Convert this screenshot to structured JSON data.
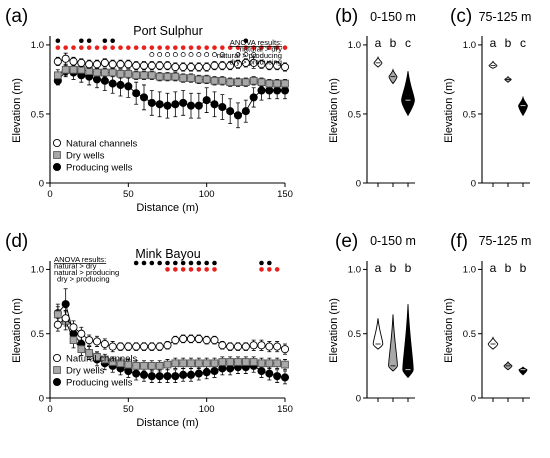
{
  "colors": {
    "natural": "#ffffff",
    "dry": "#a8a8a8",
    "producing": "#000000",
    "sig_black": "#000000",
    "sig_red": "#e8211d",
    "sig_open": "#ffffff"
  },
  "series_labels": [
    "Natural channels",
    "Dry wells",
    "Producing wells"
  ],
  "anova": {
    "title": "ANOVA results:",
    "lines": [
      "natural > dry",
      "natural > producing",
      "dry > producing"
    ]
  },
  "chart_data": [
    {
      "id": "a",
      "panel_label": "(a)",
      "type": "line",
      "title": "Port Sulphur",
      "xlabel": "Distance (m)",
      "ylabel": "Elevation (m)",
      "xlim": [
        0,
        150
      ],
      "ylim": [
        0,
        1.05
      ],
      "xticks": [
        0,
        50,
        100,
        150
      ],
      "yticks": [
        0,
        0.5,
        1.0
      ],
      "yticklabels": [
        "0",
        "0.5",
        "1.0"
      ],
      "x": [
        5,
        10,
        15,
        20,
        25,
        30,
        35,
        40,
        45,
        50,
        55,
        60,
        65,
        70,
        75,
        80,
        85,
        90,
        95,
        100,
        105,
        110,
        115,
        120,
        125,
        130,
        135,
        140,
        145,
        150
      ],
      "series": [
        {
          "key": "natural",
          "values": [
            0.88,
            0.9,
            0.88,
            0.87,
            0.86,
            0.86,
            0.87,
            0.86,
            0.86,
            0.86,
            0.85,
            0.85,
            0.85,
            0.85,
            0.85,
            0.84,
            0.84,
            0.84,
            0.84,
            0.84,
            0.85,
            0.85,
            0.85,
            0.86,
            0.87,
            0.87,
            0.86,
            0.85,
            0.85,
            0.84
          ],
          "err": [
            0.03,
            0.04,
            0.03,
            0.03,
            0.03,
            0.03,
            0.03,
            0.03,
            0.03,
            0.03,
            0.03,
            0.03,
            0.03,
            0.03,
            0.03,
            0.03,
            0.03,
            0.03,
            0.03,
            0.03,
            0.03,
            0.03,
            0.03,
            0.03,
            0.03,
            0.04,
            0.03,
            0.03,
            0.03,
            0.03
          ]
        },
        {
          "key": "dry",
          "values": [
            0.78,
            0.82,
            0.82,
            0.82,
            0.81,
            0.8,
            0.8,
            0.8,
            0.79,
            0.79,
            0.78,
            0.78,
            0.78,
            0.77,
            0.77,
            0.77,
            0.76,
            0.76,
            0.75,
            0.75,
            0.74,
            0.74,
            0.73,
            0.73,
            0.73,
            0.74,
            0.73,
            0.72,
            0.72,
            0.72
          ],
          "err": [
            0.04,
            0.04,
            0.03,
            0.03,
            0.03,
            0.03,
            0.03,
            0.03,
            0.03,
            0.03,
            0.03,
            0.03,
            0.03,
            0.03,
            0.03,
            0.03,
            0.03,
            0.03,
            0.03,
            0.03,
            0.03,
            0.03,
            0.03,
            0.03,
            0.03,
            0.03,
            0.03,
            0.03,
            0.03,
            0.03
          ]
        },
        {
          "key": "producing",
          "values": [
            0.74,
            0.81,
            0.8,
            0.78,
            0.77,
            0.75,
            0.74,
            0.72,
            0.71,
            0.7,
            0.65,
            0.62,
            0.58,
            0.57,
            0.56,
            0.57,
            0.58,
            0.56,
            0.56,
            0.6,
            0.57,
            0.55,
            0.52,
            0.49,
            0.52,
            0.62,
            0.67,
            0.67,
            0.67,
            0.67
          ],
          "err": [
            0.03,
            0.04,
            0.05,
            0.05,
            0.06,
            0.06,
            0.07,
            0.07,
            0.08,
            0.08,
            0.08,
            0.09,
            0.09,
            0.09,
            0.09,
            0.09,
            0.09,
            0.09,
            0.09,
            0.09,
            0.09,
            0.09,
            0.09,
            0.09,
            0.08,
            0.07,
            0.07,
            0.06,
            0.06,
            0.06
          ]
        }
      ],
      "legend": "bottom-left",
      "sig_rows": [
        {
          "color": "sig_black",
          "y": 1.03,
          "x": [
            5,
            20,
            25,
            35,
            40,
            125
          ]
        },
        {
          "color": "sig_red",
          "y": 0.98,
          "x": [
            5,
            10,
            15,
            20,
            25,
            30,
            35,
            40,
            45,
            50,
            55,
            60,
            65,
            70,
            75,
            80,
            85,
            90,
            95,
            100,
            105,
            110,
            115,
            120,
            125,
            130,
            135,
            140,
            145,
            150
          ]
        },
        {
          "color": "sig_open",
          "y": 0.93,
          "x": [
            65,
            70,
            75,
            80,
            85,
            90,
            95,
            100,
            105,
            110,
            120,
            125,
            130
          ]
        }
      ]
    },
    {
      "id": "b",
      "panel_label": "(b)",
      "type": "violin",
      "title": "0-150 m",
      "ylabel": "Elevation (m)",
      "ylim": [
        0,
        1.05
      ],
      "yticks": [
        0,
        0.5,
        1.0
      ],
      "yticklabels": [
        "0",
        "0.5",
        "1.0"
      ],
      "groups": [
        {
          "key": "natural",
          "letter": "a",
          "center": 0.87,
          "min": 0.84,
          "max": 0.91,
          "width": 0.5
        },
        {
          "key": "dry",
          "letter": "b",
          "center": 0.77,
          "min": 0.72,
          "max": 0.82,
          "width": 0.5
        },
        {
          "key": "producing",
          "letter": "c",
          "center": 0.6,
          "min": 0.49,
          "max": 0.81,
          "width": 0.8
        }
      ]
    },
    {
      "id": "c",
      "panel_label": "(c)",
      "type": "violin",
      "title": "75-125 m",
      "ylabel": "Elevation (m)",
      "ylim": [
        0,
        1.05
      ],
      "yticks": [
        0,
        0.5,
        1.0
      ],
      "yticklabels": [
        "0",
        "0.5",
        "1.0"
      ],
      "groups": [
        {
          "key": "natural",
          "letter": "a",
          "center": 0.85,
          "min": 0.83,
          "max": 0.88,
          "width": 0.5
        },
        {
          "key": "dry",
          "letter": "b",
          "center": 0.75,
          "min": 0.73,
          "max": 0.77,
          "width": 0.4
        },
        {
          "key": "producing",
          "letter": "c",
          "center": 0.56,
          "min": 0.49,
          "max": 0.62,
          "width": 0.55
        }
      ]
    },
    {
      "id": "d",
      "panel_label": "(d)",
      "type": "line",
      "title": "Mink Bayou",
      "xlabel": "Distance (m)",
      "ylabel": "Elevation (m)",
      "xlim": [
        0,
        150
      ],
      "ylim": [
        0,
        1.05
      ],
      "xticks": [
        0,
        50,
        100,
        150
      ],
      "yticks": [
        0,
        0.5,
        1.0
      ],
      "yticklabels": [
        "0",
        "0.5",
        "1.0"
      ],
      "x": [
        5,
        10,
        15,
        20,
        25,
        30,
        35,
        40,
        45,
        50,
        55,
        60,
        65,
        70,
        75,
        80,
        85,
        90,
        95,
        100,
        105,
        110,
        115,
        120,
        125,
        130,
        135,
        140,
        145,
        150
      ],
      "series": [
        {
          "key": "natural",
          "values": [
            0.57,
            0.62,
            0.55,
            0.5,
            0.45,
            0.44,
            0.42,
            0.4,
            0.4,
            0.4,
            0.4,
            0.4,
            0.4,
            0.4,
            0.41,
            0.45,
            0.46,
            0.46,
            0.46,
            0.45,
            0.45,
            0.41,
            0.4,
            0.4,
            0.4,
            0.41,
            0.41,
            0.4,
            0.4,
            0.38
          ],
          "err": [
            0.05,
            0.06,
            0.05,
            0.05,
            0.04,
            0.04,
            0.04,
            0.04,
            0.03,
            0.03,
            0.03,
            0.03,
            0.03,
            0.03,
            0.03,
            0.03,
            0.03,
            0.03,
            0.03,
            0.03,
            0.03,
            0.03,
            0.03,
            0.03,
            0.03,
            0.04,
            0.04,
            0.04,
            0.04,
            0.04
          ]
        },
        {
          "key": "dry",
          "values": [
            0.65,
            0.6,
            0.45,
            0.38,
            0.35,
            0.32,
            0.3,
            0.28,
            0.27,
            0.26,
            0.25,
            0.25,
            0.25,
            0.25,
            0.26,
            0.27,
            0.27,
            0.27,
            0.27,
            0.27,
            0.27,
            0.28,
            0.28,
            0.28,
            0.28,
            0.28,
            0.27,
            0.27,
            0.27,
            0.26
          ],
          "err": [
            0.06,
            0.07,
            0.06,
            0.05,
            0.05,
            0.04,
            0.04,
            0.04,
            0.04,
            0.04,
            0.04,
            0.04,
            0.04,
            0.04,
            0.04,
            0.04,
            0.04,
            0.04,
            0.04,
            0.04,
            0.04,
            0.04,
            0.04,
            0.04,
            0.04,
            0.04,
            0.04,
            0.04,
            0.04,
            0.04
          ]
        },
        {
          "key": "producing",
          "values": [
            0.66,
            0.73,
            0.5,
            0.42,
            0.35,
            0.3,
            0.27,
            0.25,
            0.23,
            0.21,
            0.19,
            0.18,
            0.17,
            0.17,
            0.17,
            0.17,
            0.18,
            0.18,
            0.19,
            0.2,
            0.21,
            0.23,
            0.23,
            0.24,
            0.24,
            0.25,
            0.21,
            0.19,
            0.17,
            0.16
          ],
          "err": [
            0.07,
            0.12,
            0.07,
            0.06,
            0.05,
            0.05,
            0.05,
            0.05,
            0.05,
            0.05,
            0.05,
            0.05,
            0.05,
            0.05,
            0.05,
            0.05,
            0.05,
            0.05,
            0.05,
            0.05,
            0.05,
            0.05,
            0.05,
            0.05,
            0.05,
            0.05,
            0.05,
            0.05,
            0.05,
            0.05
          ]
        }
      ],
      "legend": "bottom-left",
      "sig_rows": [
        {
          "color": "sig_black",
          "y": 1.05,
          "x": [
            55,
            60,
            65,
            70,
            75,
            80,
            85,
            90,
            95,
            100,
            105,
            135,
            140
          ]
        },
        {
          "color": "sig_red",
          "y": 1.0,
          "x": [
            75,
            80,
            85,
            90,
            95,
            100,
            105,
            135,
            140,
            145
          ]
        }
      ]
    },
    {
      "id": "e",
      "panel_label": "(e)",
      "type": "violin",
      "title": "0-150 m",
      "ylabel": "Elevation (m)",
      "ylim": [
        0,
        1.05
      ],
      "yticks": [
        0,
        0.5,
        1.0
      ],
      "yticklabels": [
        "0",
        "0.5",
        "1.0"
      ],
      "groups": [
        {
          "key": "natural",
          "letter": "a",
          "center": 0.42,
          "min": 0.38,
          "max": 0.62,
          "width": 0.6
        },
        {
          "key": "dry",
          "letter": "b",
          "center": 0.25,
          "min": 0.21,
          "max": 0.65,
          "width": 0.55
        },
        {
          "key": "producing",
          "letter": "b",
          "center": 0.22,
          "min": 0.16,
          "max": 0.73,
          "width": 0.65
        }
      ]
    },
    {
      "id": "f",
      "panel_label": "(f)",
      "type": "violin",
      "title": "75-125 m",
      "ylabel": "Elevation (m)",
      "ylim": [
        0,
        1.05
      ],
      "yticks": [
        0,
        0.5,
        1.0
      ],
      "yticklabels": [
        "0",
        "0.5",
        "1.0"
      ],
      "groups": [
        {
          "key": "natural",
          "letter": "a",
          "center": 0.42,
          "min": 0.38,
          "max": 0.47,
          "width": 0.6
        },
        {
          "key": "dry",
          "letter": "b",
          "center": 0.25,
          "min": 0.22,
          "max": 0.28,
          "width": 0.5
        },
        {
          "key": "producing",
          "letter": "b",
          "center": 0.22,
          "min": 0.18,
          "max": 0.24,
          "width": 0.5
        }
      ]
    }
  ]
}
